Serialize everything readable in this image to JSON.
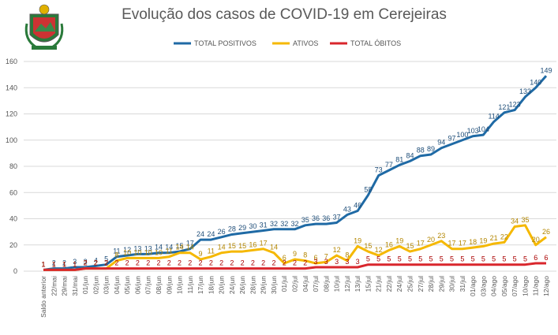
{
  "chart_data": {
    "type": "line",
    "title": "Evolução dos casos de COVID-19 em Cerejeiras",
    "categories": [
      "Saldo anterior",
      "22/mai",
      "29/mai",
      "31/mai",
      "01/jun",
      "02/jun",
      "03/jun",
      "04/jun",
      "05/jun",
      "06/jun",
      "07/jun",
      "08/jun",
      "09/jun",
      "10/jun",
      "11/jun",
      "17/jun",
      "18/jun",
      "20/jun",
      "24/jun",
      "26/jun",
      "28/jun",
      "29/jun",
      "30/jun",
      "01/jul",
      "02/jul",
      "04/jul",
      "07/jul",
      "08/jul",
      "10/jul",
      "12/jul",
      "13/jul",
      "15/jul",
      "21/jul",
      "22/jul",
      "24/jul",
      "25/jul",
      "27/jul",
      "28/jul",
      "29/jul",
      "30/jul",
      "31/jul",
      "01/ago",
      "03/ago",
      "04/ago",
      "05/ago",
      "07/ago",
      "10/ago",
      "11/ago",
      "12/ago"
    ],
    "series": [
      {
        "name": "TOTAL POSITIVOS",
        "color": "#1f6aa5",
        "values": [
          1,
          2,
          2,
          3,
          3,
          4,
          5,
          11,
          12,
          13,
          13,
          14,
          14,
          15,
          17,
          24,
          24,
          26,
          28,
          29,
          30,
          31,
          32,
          32,
          32,
          35,
          36,
          36,
          37,
          43,
          46,
          58,
          73,
          77,
          81,
          84,
          88,
          89,
          94,
          97,
          100,
          103,
          104,
          114,
          121,
          123,
          133,
          140,
          149
        ]
      },
      {
        "name": "ATIVOS",
        "color": "#f5b800",
        "values": [
          1,
          1,
          1,
          1,
          2,
          2,
          2,
          8,
          10,
          10,
          10,
          10,
          11,
          14,
          14,
          9,
          11,
          14,
          15,
          15,
          16,
          17,
          14,
          6,
          9,
          8,
          6,
          7,
          12,
          8,
          19,
          15,
          12,
          16,
          19,
          15,
          17,
          20,
          23,
          17,
          17,
          18,
          19,
          21,
          22,
          34,
          35,
          20,
          26
        ]
      },
      {
        "name": "TOTAL ÓBITOS",
        "color": "#d9262c",
        "values": [
          1,
          1,
          1,
          1,
          2,
          2,
          2,
          2,
          2,
          2,
          2,
          2,
          2,
          2,
          2,
          2,
          2,
          2,
          2,
          2,
          2,
          2,
          2,
          2,
          2,
          2,
          3,
          3,
          3,
          3,
          3,
          5,
          5,
          5,
          5,
          5,
          5,
          5,
          5,
          5,
          5,
          5,
          5,
          5,
          5,
          5,
          5,
          6,
          6
        ]
      }
    ],
    "ylim": [
      0,
      160
    ],
    "yticks": [
      0,
      20,
      40,
      60,
      80,
      100,
      120,
      140,
      160
    ],
    "grid": true,
    "legend": "top"
  }
}
